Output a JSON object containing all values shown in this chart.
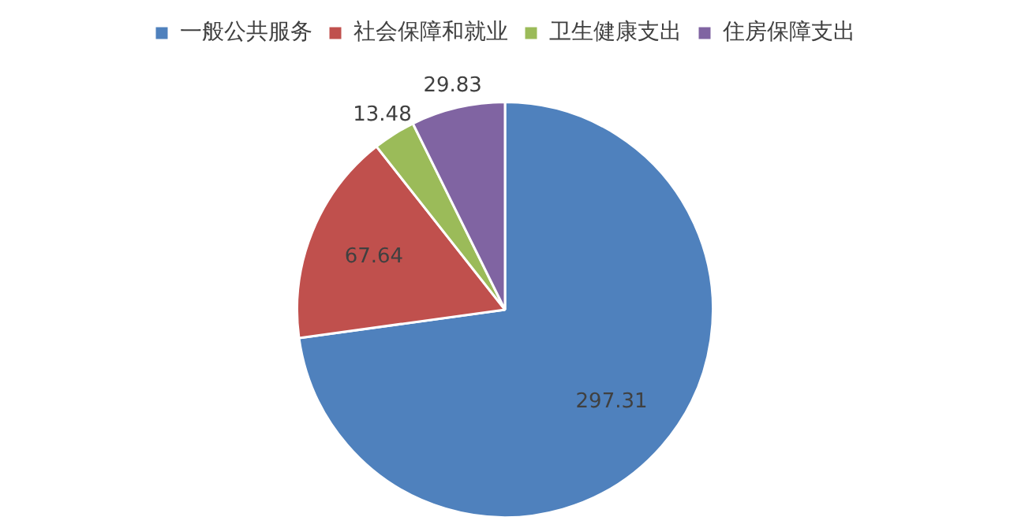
{
  "chart_data": {
    "type": "pie",
    "categories": [
      "一般公共服务",
      "社会保障和就业",
      "卫生健康支出",
      "住房保障支出"
    ],
    "values": [
      297.31,
      67.64,
      13.48,
      29.83
    ],
    "colors": [
      "#4f81bd",
      "#c0504d",
      "#9bbb59",
      "#8064a2"
    ],
    "data_labels": true,
    "legend": "top"
  }
}
